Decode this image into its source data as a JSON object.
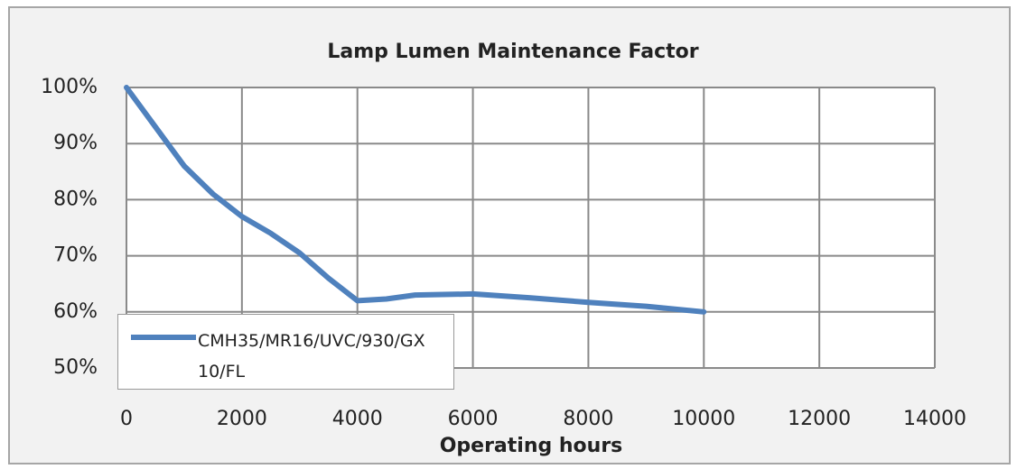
{
  "chart_data": {
    "type": "line",
    "title": "Lamp Lumen Maintenance Factor",
    "x_label": "Operating hours",
    "x": [
      0,
      500,
      1000,
      1500,
      2000,
      2500,
      3000,
      3500,
      4000,
      4500,
      5000,
      6000,
      7000,
      8000,
      9000,
      10000
    ],
    "series": [
      {
        "name": "CMH35/MR16/UVC/930/GX10/FL",
        "color": "#4f81bd",
        "values": [
          100,
          93,
          86,
          81,
          77,
          74,
          70.5,
          66,
          62,
          62.3,
          63,
          63.2,
          62.5,
          61.7,
          61,
          60
        ]
      }
    ],
    "xlim": [
      0,
      14000
    ],
    "xticks": [
      0,
      2000,
      4000,
      6000,
      8000,
      10000,
      12000,
      14000
    ],
    "ylim": [
      50,
      100
    ],
    "yticks": [
      {
        "value": 50,
        "label": "50%"
      },
      {
        "value": 60,
        "label": "60%"
      },
      {
        "value": 70,
        "label": "70%"
      },
      {
        "value": 80,
        "label": "80%"
      },
      {
        "value": 90,
        "label": "90%"
      },
      {
        "value": 100,
        "label": "100%"
      }
    ],
    "grid": true,
    "legend": "bottom-left"
  }
}
